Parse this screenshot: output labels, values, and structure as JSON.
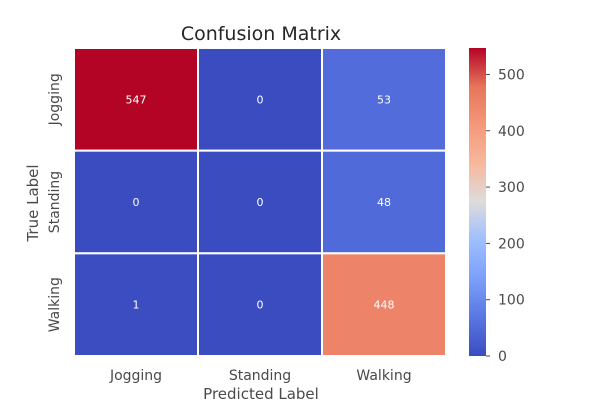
{
  "chart_data": {
    "type": "heatmap",
    "title": "Confusion Matrix",
    "xlabel": "Predicted Label",
    "ylabel": "True Label",
    "x_categories": [
      "Jogging",
      "Standing",
      "Walking"
    ],
    "y_categories": [
      "Jogging",
      "Standing",
      "Walking"
    ],
    "values": [
      [
        547,
        0,
        53
      ],
      [
        0,
        0,
        48
      ],
      [
        1,
        0,
        448
      ]
    ],
    "colormap": "coolwarm",
    "color_range": [
      0,
      547
    ],
    "colorbar_ticks": [
      0,
      100,
      200,
      300,
      400,
      500
    ],
    "annotated": true,
    "cell_borders": "white"
  }
}
